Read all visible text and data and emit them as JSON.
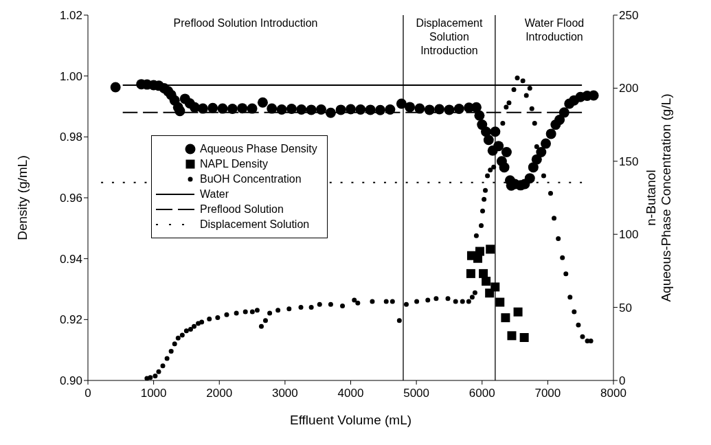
{
  "chart_data": {
    "type": "scatter",
    "xlabel": "Effluent Volume (mL)",
    "ylabel": "Density (g/mL)",
    "y2label": "n-Butanol\nAqueous-Phase Concentration (g/L)",
    "xlim": [
      0,
      8000
    ],
    "xticks": [
      0,
      1000,
      2000,
      3000,
      4000,
      5000,
      6000,
      7000,
      8000
    ],
    "ylim": [
      0.9,
      1.02
    ],
    "yticks": [
      {
        "value": 0.9,
        "label": "0.90"
      },
      {
        "value": 0.92,
        "label": "0.92"
      },
      {
        "value": 0.94,
        "label": "0.94"
      },
      {
        "value": 0.96,
        "label": "0.96"
      },
      {
        "value": 0.98,
        "label": "0.98"
      },
      {
        "value": 1.0,
        "label": "1.00"
      },
      {
        "value": 1.02,
        "label": "1.02"
      }
    ],
    "y2lim": [
      0,
      250
    ],
    "y2ticks": [
      0,
      50,
      100,
      150,
      200,
      250
    ],
    "legend": "left",
    "ref_lines": [
      {
        "axis": "x",
        "value": 4800
      },
      {
        "axis": "x",
        "value": 6200
      }
    ],
    "annotations": [
      "Preflood Solution Introduction",
      "Displacement Solution Introduction",
      "Water Flood Introduction"
    ],
    "series": [
      {
        "name": "Aqueous Phase Density",
        "type": "scatter",
        "marker": "circle",
        "color": "#000000",
        "x": [
          420,
          813,
          900,
          1000,
          1080,
          1160,
          1220,
          1267,
          1320,
          1373,
          1400,
          1478,
          1550,
          1626,
          1750,
          1900,
          2050,
          2200,
          2350,
          2500,
          2661,
          2800,
          2950,
          3100,
          3250,
          3400,
          3550,
          3696,
          3850,
          4000,
          4150,
          4300,
          4450,
          4600,
          4773,
          4900,
          5050,
          5200,
          5350,
          5500,
          5650,
          5800,
          5913,
          5960,
          6000,
          6060,
          6100,
          6162,
          6200,
          6250,
          6300,
          6338,
          6373,
          6426,
          6444,
          6500,
          6586,
          6650,
          6727,
          6780,
          6832,
          6900,
          6970,
          7050,
          7120,
          7180,
          7250,
          7328,
          7400,
          7497,
          7600,
          7698
        ],
        "values": [
          0.9963,
          0.9973,
          0.9972,
          0.997,
          0.9968,
          0.996,
          0.995,
          0.9938,
          0.992,
          0.9897,
          0.9885,
          0.9925,
          0.991,
          0.9897,
          0.9893,
          0.9895,
          0.9893,
          0.9892,
          0.9894,
          0.9893,
          0.9913,
          0.9893,
          0.989,
          0.9892,
          0.989,
          0.9889,
          0.989,
          0.9879,
          0.9889,
          0.9891,
          0.989,
          0.9889,
          0.9888,
          0.989,
          0.9909,
          0.9898,
          0.9893,
          0.9889,
          0.9891,
          0.9889,
          0.9892,
          0.9896,
          0.9897,
          0.987,
          0.984,
          0.9817,
          0.979,
          0.9755,
          0.9817,
          0.977,
          0.972,
          0.97,
          0.975,
          0.9657,
          0.964,
          0.9645,
          0.9641,
          0.9645,
          0.9664,
          0.97,
          0.9726,
          0.975,
          0.9778,
          0.981,
          0.984,
          0.9856,
          0.988,
          0.9909,
          0.992,
          0.9931,
          0.9935,
          0.9936
        ]
      },
      {
        "name": "NAPL Density",
        "type": "scatter",
        "marker": "square",
        "color": "#000000",
        "x": [
          5840,
          5935,
          5966,
          6125,
          5829,
          6019,
          6061,
          6199,
          6114,
          6272,
          6357,
          6547,
          6452,
          6642
        ],
        "values": [
          0.941,
          0.9401,
          0.9424,
          0.9431,
          0.9351,
          0.9351,
          0.9326,
          0.9307,
          0.9287,
          0.9257,
          0.9206,
          0.9225,
          0.9147,
          0.9141
        ]
      },
      {
        "name": "BuOH Concentration",
        "type": "scatter",
        "marker": "circle",
        "axis": "y2",
        "color": "#000000",
        "x": [
          898,
          950,
          1024,
          1077,
          1140,
          1204,
          1267,
          1320,
          1373,
          1436,
          1499,
          1563,
          1616,
          1679,
          1732,
          1848,
          1975,
          2112,
          2260,
          2397,
          2503,
          2577,
          2640,
          2703,
          2767,
          2893,
          3062,
          3242,
          3400,
          3527,
          3696,
          3875,
          4055,
          4108,
          4329,
          4541,
          4636,
          4741,
          4847,
          5005,
          5174,
          5301,
          5480,
          5597,
          5702,
          5797,
          5850,
          5892,
          5913,
          5987,
          6008,
          6030,
          6050,
          6082,
          6125,
          6177,
          6230,
          6315,
          6367,
          6410,
          6484,
          6536,
          6621,
          6674,
          6727,
          6758,
          6800,
          6832,
          6938,
          7043,
          7096,
          7160,
          7223,
          7276,
          7339,
          7402,
          7466,
          7529,
          7603,
          7656
        ],
        "values": [
          1.4,
          2,
          3,
          6,
          10,
          15,
          20,
          25,
          29,
          31,
          34,
          35,
          37,
          39,
          40,
          42,
          43,
          45,
          46,
          47,
          47,
          48,
          37,
          41,
          46,
          48,
          49,
          50,
          50,
          52,
          52,
          51,
          55,
          53,
          54,
          54,
          54,
          41,
          52,
          54,
          55,
          56,
          56,
          54,
          54,
          54,
          57,
          60,
          99,
          106,
          116,
          124,
          130,
          140,
          144,
          146,
          null,
          176,
          187,
          190,
          199,
          207,
          205,
          195,
          200,
          186,
          176,
          160,
          140,
          128,
          111,
          97,
          84,
          73,
          57,
          47,
          38,
          30,
          27,
          27
        ]
      },
      {
        "name": "Water",
        "type": "line",
        "marker": "none",
        "line_style": "solid",
        "color": "#000000",
        "x": [
          530,
          7520
        ],
        "values": [
          0.997,
          0.997
        ]
      },
      {
        "name": "Preflood Solution",
        "type": "line",
        "marker": "none",
        "line_style": "dashed",
        "color": "#000000",
        "x": [
          530,
          7520
        ],
        "values": [
          0.988,
          0.988
        ]
      },
      {
        "name": "Displacement Solution",
        "type": "line",
        "marker": "none",
        "line_style": "dotted",
        "color": "#000000",
        "x": [
          200,
          7520
        ],
        "values": [
          0.965,
          0.965
        ]
      }
    ]
  }
}
